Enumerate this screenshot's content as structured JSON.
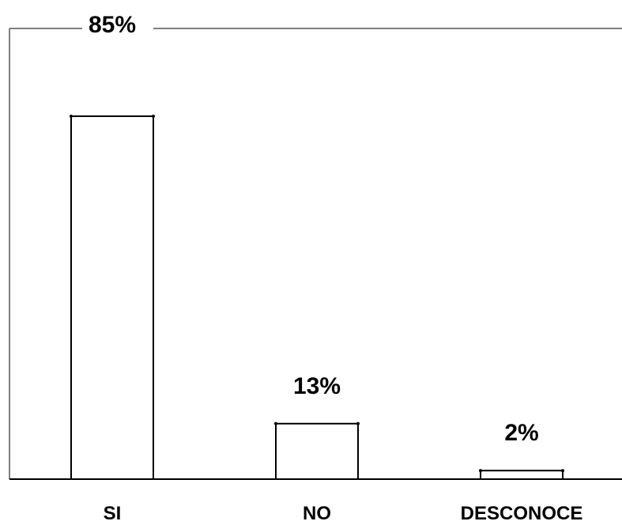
{
  "chart_data": {
    "type": "bar",
    "categories": [
      "SI",
      "NO",
      "DESCONOCE"
    ],
    "values": [
      85,
      13,
      2
    ],
    "data_labels": [
      "85%",
      "13%",
      "2%"
    ],
    "title": "",
    "xlabel": "",
    "ylabel": "",
    "ylim": [
      0,
      100
    ],
    "grid": false,
    "legend": "none",
    "colors": {
      "bar_fill": "#ffffff",
      "bar_stroke": "#000000",
      "axis": "#808080",
      "text": "#000000"
    }
  }
}
